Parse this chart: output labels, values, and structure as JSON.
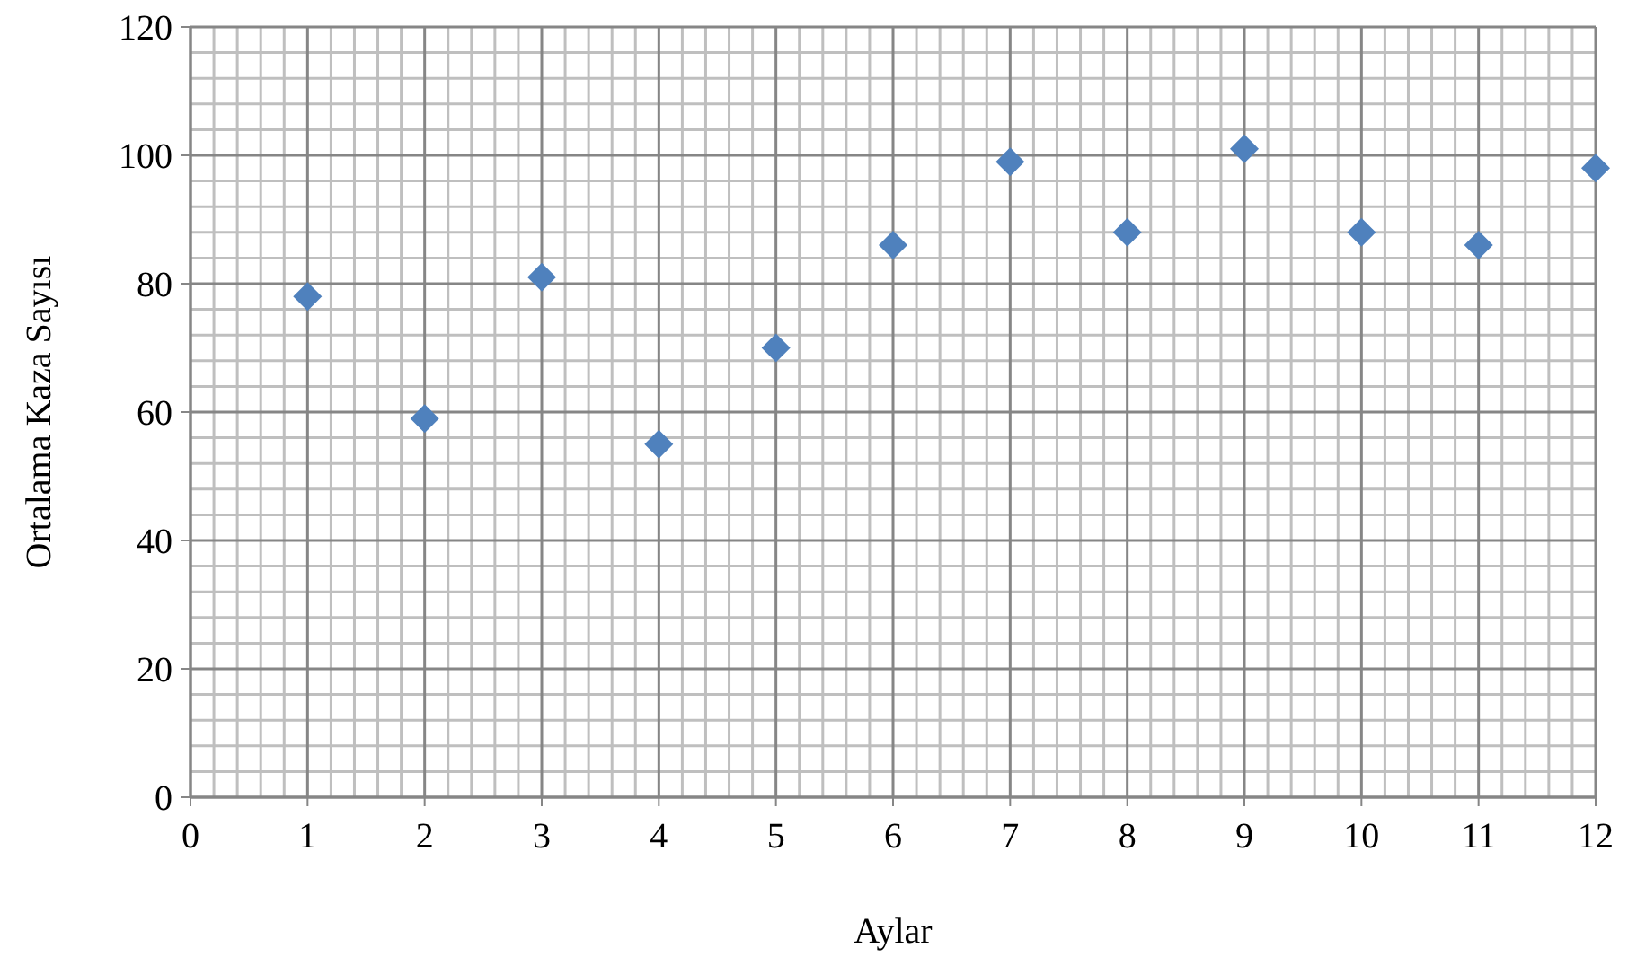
{
  "chart_data": {
    "type": "scatter",
    "xlabel": "Aylar",
    "ylabel": "Ortalama Kaza Sayısı",
    "x": [
      1,
      2,
      3,
      4,
      5,
      6,
      7,
      8,
      9,
      10,
      11,
      12
    ],
    "values": [
      78,
      59,
      81,
      55,
      70,
      86,
      99,
      88,
      101,
      88,
      86,
      98
    ],
    "color": "#4f81bd",
    "marker": "diamond",
    "grid": true,
    "xlim": [
      0,
      12
    ],
    "xticks": [
      0,
      1,
      2,
      3,
      4,
      5,
      6,
      7,
      8,
      9,
      10,
      11,
      12
    ],
    "ylim": [
      0,
      120
    ],
    "yticks": [
      0,
      20,
      40,
      60,
      80,
      100,
      120
    ]
  }
}
